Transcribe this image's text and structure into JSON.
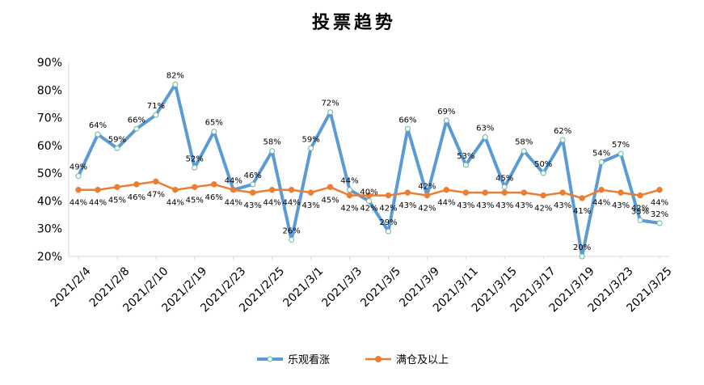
{
  "chart_data": {
    "type": "line",
    "title": "投票趋势",
    "xlabel": "",
    "ylabel": "",
    "ylim": [
      0.2,
      0.9
    ],
    "yticks": [
      "20%",
      "30%",
      "40%",
      "50%",
      "60%",
      "70%",
      "80%",
      "90%"
    ],
    "xtick_labels": [
      "2021/2/4",
      "2021/2/8",
      "2021/2/10",
      "2021/2/19",
      "2021/2/23",
      "2021/2/25",
      "2021/3/1",
      "2021/3/3",
      "2021/3/5",
      "2021/3/9",
      "2021/3/11",
      "2021/3/15",
      "2021/3/17",
      "2021/3/19",
      "2021/3/23",
      "2021/3/25"
    ],
    "legend_position": "bottom",
    "grid": false,
    "series": [
      {
        "name": "乐观看涨",
        "color": "#5B9BD5",
        "values": [
          0.49,
          0.64,
          0.59,
          0.66,
          0.71,
          0.82,
          0.52,
          0.65,
          0.44,
          0.46,
          0.58,
          0.26,
          0.59,
          0.72,
          0.44,
          0.4,
          0.29,
          0.66,
          0.42,
          0.69,
          0.53,
          0.63,
          0.45,
          0.58,
          0.5,
          0.62,
          0.2,
          0.54,
          0.57,
          0.33,
          0.32
        ],
        "labels": [
          "49%",
          "64%",
          "59%",
          "66%",
          "71%",
          "82%",
          "52%",
          "65%",
          "44%",
          "46%",
          "58%",
          "26%",
          "59%",
          "72%",
          "44%",
          "40%",
          "29%",
          "66%",
          "42%",
          "69%",
          "53%",
          "63%",
          "45%",
          "58%",
          "50%",
          "62%",
          "20%",
          "54%",
          "57%",
          "33%",
          "32%"
        ]
      },
      {
        "name": "满仓及以上",
        "color": "#ED7D31",
        "values": [
          0.44,
          0.44,
          0.45,
          0.46,
          0.47,
          0.44,
          0.45,
          0.46,
          0.44,
          0.43,
          0.44,
          0.44,
          0.43,
          0.45,
          0.42,
          0.42,
          0.42,
          0.43,
          0.42,
          0.44,
          0.43,
          0.43,
          0.43,
          0.43,
          0.42,
          0.43,
          0.41,
          0.44,
          0.43,
          0.42,
          0.44
        ],
        "labels": [
          "44%",
          "44%",
          "45%",
          "46%",
          "47%",
          "44%",
          "45%",
          "46%",
          "44%",
          "43%",
          "44%",
          "44%",
          "43%",
          "45%",
          "42%",
          "42%",
          "42%",
          "43%",
          "42%",
          "44%",
          "43%",
          "43%",
          "43%",
          "43%",
          "42%",
          "43%",
          "41%",
          "44%",
          "43%",
          "42%",
          "44%"
        ]
      }
    ]
  }
}
